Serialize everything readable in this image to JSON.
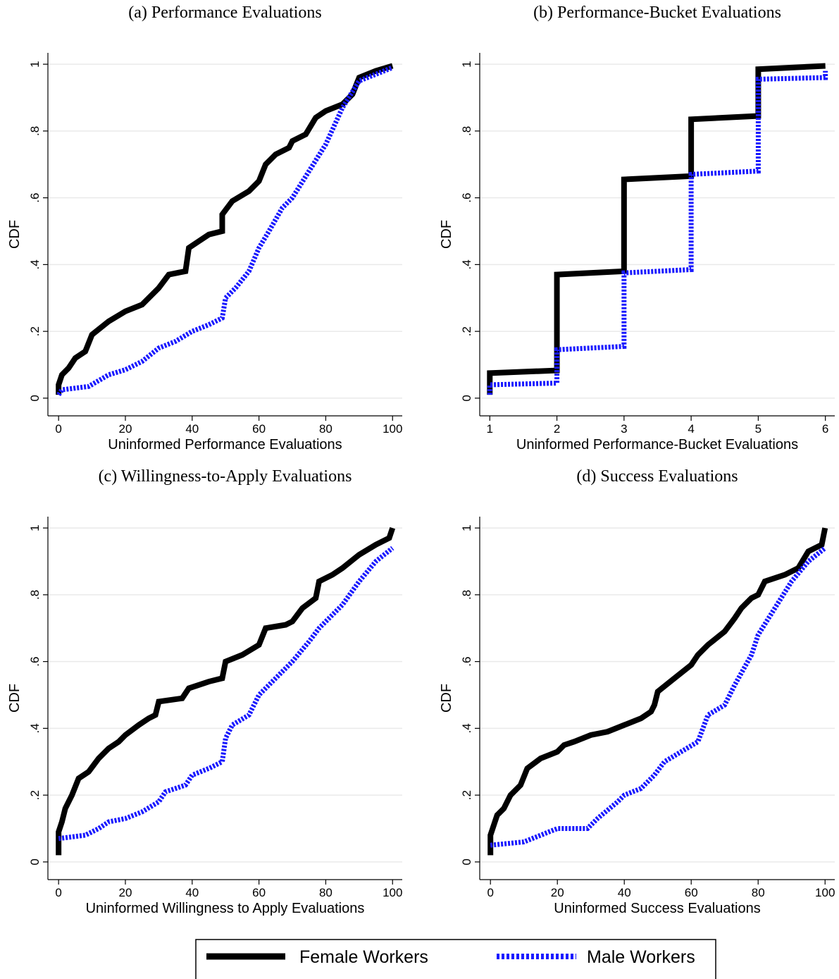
{
  "chart_data": [
    {
      "type": "line",
      "title": "(a) Performance Evaluations",
      "xlabel": "Uninformed Performance Evaluations",
      "ylabel": "CDF",
      "xlim": [
        -3.2,
        102.9
      ],
      "ylim": [
        -0.053,
        1.034
      ],
      "xticks": [
        0,
        20,
        40,
        60,
        80,
        100
      ],
      "yticks": [
        0,
        {
          "value": 0.2,
          "label": ".2"
        },
        {
          "value": 0.4,
          "label": ".4"
        },
        {
          "value": 0.6,
          "label": ".6"
        },
        {
          "value": 0.8,
          "label": ".8"
        },
        1
      ],
      "grid": true,
      "series": [
        {
          "name": "Female Workers",
          "color": "#000000",
          "linestyle": "solid",
          "x": [
            0,
            0,
            1,
            3,
            5,
            8,
            10,
            15,
            20,
            25,
            30,
            33,
            38,
            39,
            42,
            45,
            49,
            49,
            52,
            57,
            60,
            62,
            65,
            69,
            70,
            74,
            77,
            80,
            85,
            88,
            90,
            95,
            100
          ],
          "values": [
            0.01,
            0.04,
            0.07,
            0.09,
            0.12,
            0.14,
            0.19,
            0.23,
            0.26,
            0.28,
            0.33,
            0.37,
            0.38,
            0.45,
            0.47,
            0.49,
            0.5,
            0.55,
            0.59,
            0.62,
            0.65,
            0.7,
            0.73,
            0.75,
            0.77,
            0.79,
            0.84,
            0.86,
            0.88,
            0.91,
            0.96,
            0.98,
            0.995
          ]
        },
        {
          "name": "Male Workers",
          "color": "#1a1aff",
          "linestyle": "dotted",
          "x": [
            0,
            1,
            9,
            15,
            20,
            25,
            30,
            35,
            40,
            45,
            49,
            50,
            53,
            57,
            60,
            63,
            67,
            70,
            75,
            80,
            85,
            90,
            95,
            100
          ],
          "values": [
            0.01,
            0.025,
            0.035,
            0.07,
            0.085,
            0.11,
            0.15,
            0.17,
            0.2,
            0.22,
            0.24,
            0.3,
            0.33,
            0.38,
            0.45,
            0.5,
            0.57,
            0.6,
            0.68,
            0.76,
            0.87,
            0.95,
            0.97,
            0.99
          ]
        }
      ]
    },
    {
      "type": "line",
      "title": "(b) Performance-Bucket Evaluations",
      "xlabel": "Uninformed Performance-Bucket Evaluations",
      "ylabel": "CDF",
      "xlim": [
        0.85,
        6.14
      ],
      "ylim": [
        -0.053,
        1.034
      ],
      "xticks": [
        1,
        2,
        3,
        4,
        5,
        6
      ],
      "yticks": [
        0,
        {
          "value": 0.2,
          "label": ".2"
        },
        {
          "value": 0.4,
          "label": ".4"
        },
        {
          "value": 0.6,
          "label": ".6"
        },
        {
          "value": 0.8,
          "label": ".8"
        },
        1
      ],
      "grid": true,
      "series": [
        {
          "color": "#000000",
          "linestyle": "solid",
          "x": [
            1,
            1,
            2,
            2,
            3,
            3,
            4,
            4,
            5,
            5,
            6
          ],
          "values": [
            0.01,
            0.075,
            0.083,
            0.37,
            0.38,
            0.655,
            0.665,
            0.835,
            0.845,
            0.985,
            0.995
          ]
        },
        {
          "color": "#1a1aff",
          "linestyle": "dotted",
          "x": [
            1,
            1,
            2,
            2,
            3,
            3,
            4,
            4,
            5,
            5,
            6,
            6
          ],
          "values": [
            0.01,
            0.04,
            0.045,
            0.145,
            0.155,
            0.375,
            0.385,
            0.67,
            0.68,
            0.955,
            0.96,
            0.98
          ]
        }
      ]
    },
    {
      "type": "line",
      "title": "(c) Willingness-to-Apply Evaluations",
      "xlabel": "Uninformed Willingness to Apply Evaluations",
      "ylabel": "CDF",
      "xlim": [
        -3.2,
        102.9
      ],
      "ylim": [
        -0.053,
        1.034
      ],
      "xticks": [
        0,
        20,
        40,
        60,
        80,
        100
      ],
      "yticks": [
        0,
        {
          "value": 0.2,
          "label": ".2"
        },
        {
          "value": 0.4,
          "label": ".4"
        },
        {
          "value": 0.6,
          "label": ".6"
        },
        {
          "value": 0.8,
          "label": ".8"
        },
        1
      ],
      "grid": true,
      "series": [
        {
          "color": "#000000",
          "linestyle": "solid",
          "x": [
            0,
            0,
            1,
            2,
            4,
            6,
            9,
            12,
            15,
            18,
            20,
            24,
            27,
            29,
            30,
            37,
            39,
            45,
            49,
            50,
            55,
            60,
            62,
            68,
            70,
            73,
            77,
            78,
            82,
            85,
            90,
            95,
            99,
            100
          ],
          "values": [
            0.02,
            0.09,
            0.12,
            0.16,
            0.2,
            0.25,
            0.27,
            0.31,
            0.34,
            0.36,
            0.38,
            0.41,
            0.43,
            0.44,
            0.48,
            0.49,
            0.52,
            0.54,
            0.55,
            0.6,
            0.62,
            0.65,
            0.7,
            0.71,
            0.72,
            0.76,
            0.79,
            0.84,
            0.86,
            0.88,
            0.92,
            0.95,
            0.97,
            1
          ]
        },
        {
          "color": "#1a1aff",
          "linestyle": "dotted",
          "x": [
            0,
            8,
            12,
            15,
            20,
            25,
            30,
            32,
            35,
            38,
            40,
            45,
            49,
            50,
            52,
            57,
            60,
            65,
            70,
            75,
            78,
            85,
            90,
            95,
            100
          ],
          "values": [
            0.07,
            0.08,
            0.1,
            0.12,
            0.13,
            0.15,
            0.18,
            0.21,
            0.22,
            0.23,
            0.26,
            0.28,
            0.3,
            0.37,
            0.41,
            0.44,
            0.5,
            0.55,
            0.6,
            0.66,
            0.7,
            0.77,
            0.84,
            0.9,
            0.94
          ]
        }
      ]
    },
    {
      "type": "line",
      "title": "(d) Success Evaluations",
      "xlabel": "Uninformed Success Evaluations",
      "ylabel": "CDF",
      "xlim": [
        -3.2,
        102.9
      ],
      "ylim": [
        -0.053,
        1.034
      ],
      "xticks": [
        0,
        20,
        40,
        60,
        80,
        100
      ],
      "yticks": [
        0,
        {
          "value": 0.2,
          "label": ".2"
        },
        {
          "value": 0.4,
          "label": ".4"
        },
        {
          "value": 0.6,
          "label": ".6"
        },
        {
          "value": 0.8,
          "label": ".8"
        },
        1
      ],
      "grid": true,
      "series": [
        {
          "color": "#000000",
          "linestyle": "solid",
          "x": [
            0,
            0,
            1,
            2,
            4,
            6,
            9,
            11,
            15,
            20,
            22,
            25,
            30,
            35,
            40,
            45,
            48,
            49,
            50,
            55,
            60,
            62,
            65,
            70,
            73,
            75,
            78,
            80,
            82,
            88,
            92,
            95,
            99,
            100
          ],
          "values": [
            0.02,
            0.08,
            0.11,
            0.14,
            0.16,
            0.2,
            0.23,
            0.28,
            0.31,
            0.33,
            0.35,
            0.36,
            0.38,
            0.39,
            0.41,
            0.43,
            0.45,
            0.47,
            0.51,
            0.55,
            0.59,
            0.62,
            0.65,
            0.69,
            0.73,
            0.76,
            0.79,
            0.8,
            0.84,
            0.86,
            0.88,
            0.93,
            0.95,
            1
          ]
        },
        {
          "color": "#1a1aff",
          "linestyle": "dotted",
          "x": [
            0,
            10,
            15,
            20,
            29,
            32,
            38,
            40,
            45,
            49,
            52,
            57,
            62,
            65,
            70,
            73,
            78,
            80,
            85,
            90,
            95,
            100
          ],
          "values": [
            0.05,
            0.06,
            0.08,
            0.1,
            0.1,
            0.13,
            0.18,
            0.2,
            0.22,
            0.26,
            0.3,
            0.33,
            0.36,
            0.44,
            0.47,
            0.53,
            0.62,
            0.68,
            0.76,
            0.84,
            0.9,
            0.94
          ]
        }
      ]
    }
  ]
}
